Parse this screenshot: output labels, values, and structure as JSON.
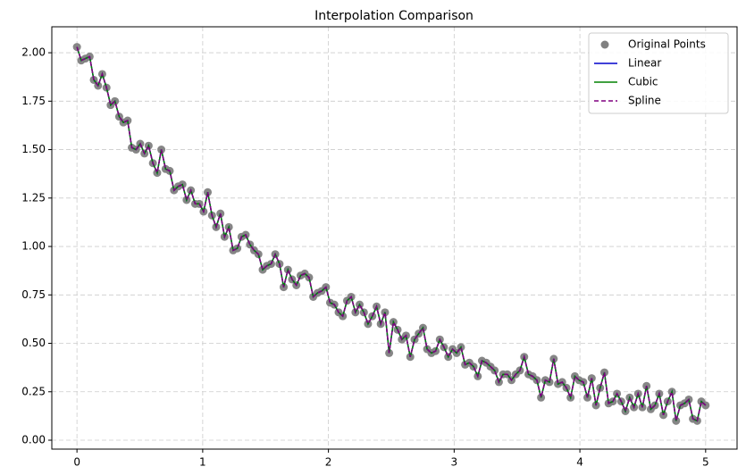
{
  "chart_data": {
    "type": "line",
    "title": "Interpolation Comparison",
    "x": [
      0,
      0.034,
      0.067,
      0.101,
      0.134,
      0.168,
      0.201,
      0.235,
      0.268,
      0.302,
      0.336,
      0.369,
      0.403,
      0.436,
      0.47,
      0.503,
      0.537,
      0.57,
      0.604,
      0.638,
      0.671,
      0.705,
      0.738,
      0.772,
      0.805,
      0.839,
      0.872,
      0.906,
      0.94,
      0.973,
      1.007,
      1.04,
      1.074,
      1.107,
      1.141,
      1.174,
      1.208,
      1.242,
      1.275,
      1.309,
      1.342,
      1.376,
      1.409,
      1.443,
      1.477,
      1.51,
      1.544,
      1.577,
      1.611,
      1.644,
      1.678,
      1.711,
      1.745,
      1.779,
      1.812,
      1.846,
      1.879,
      1.913,
      1.946,
      1.98,
      2.013,
      2.047,
      2.081,
      2.114,
      2.148,
      2.181,
      2.215,
      2.248,
      2.282,
      2.315,
      2.349,
      2.383,
      2.416,
      2.45,
      2.483,
      2.517,
      2.55,
      2.584,
      2.617,
      2.651,
      2.685,
      2.718,
      2.752,
      2.785,
      2.819,
      2.852,
      2.886,
      2.919,
      2.953,
      2.987,
      3.02,
      3.054,
      3.087,
      3.121,
      3.154,
      3.188,
      3.221,
      3.255,
      3.289,
      3.322,
      3.356,
      3.389,
      3.423,
      3.456,
      3.49,
      3.523,
      3.557,
      3.591,
      3.624,
      3.658,
      3.691,
      3.725,
      3.758,
      3.792,
      3.826,
      3.859,
      3.893,
      3.926,
      3.96,
      3.993,
      4.027,
      4.06,
      4.094,
      4.128,
      4.161,
      4.195,
      4.228,
      4.262,
      4.295,
      4.329,
      4.362,
      4.396,
      4.43,
      4.463,
      4.497,
      4.53,
      4.564,
      4.597,
      4.631,
      4.664,
      4.698,
      4.732,
      4.765,
      4.799,
      4.832,
      4.866,
      4.899,
      4.933,
      4.966,
      5
    ],
    "series": [
      {
        "name": "Original Points",
        "kind": "scatter",
        "color": "#808080",
        "values": [
          2.03,
          1.96,
          1.97,
          1.98,
          1.86,
          1.83,
          1.89,
          1.82,
          1.73,
          1.75,
          1.67,
          1.64,
          1.65,
          1.51,
          1.5,
          1.53,
          1.48,
          1.52,
          1.43,
          1.38,
          1.5,
          1.4,
          1.39,
          1.29,
          1.31,
          1.32,
          1.24,
          1.29,
          1.22,
          1.22,
          1.18,
          1.28,
          1.16,
          1.1,
          1.17,
          1.05,
          1.1,
          0.98,
          0.99,
          1.05,
          1.06,
          1.01,
          0.98,
          0.96,
          0.88,
          0.9,
          0.91,
          0.96,
          0.91,
          0.79,
          0.88,
          0.83,
          0.8,
          0.85,
          0.86,
          0.84,
          0.74,
          0.76,
          0.77,
          0.79,
          0.71,
          0.7,
          0.66,
          0.64,
          0.72,
          0.74,
          0.66,
          0.7,
          0.66,
          0.6,
          0.64,
          0.69,
          0.6,
          0.66,
          0.45,
          0.61,
          0.57,
          0.52,
          0.54,
          0.43,
          0.52,
          0.55,
          0.58,
          0.47,
          0.45,
          0.46,
          0.52,
          0.48,
          0.43,
          0.47,
          0.45,
          0.48,
          0.39,
          0.4,
          0.38,
          0.33,
          0.41,
          0.4,
          0.38,
          0.36,
          0.3,
          0.34,
          0.34,
          0.31,
          0.34,
          0.36,
          0.43,
          0.34,
          0.33,
          0.31,
          0.22,
          0.31,
          0.3,
          0.42,
          0.29,
          0.3,
          0.27,
          0.22,
          0.33,
          0.31,
          0.3,
          0.22,
          0.32,
          0.18,
          0.27,
          0.35,
          0.19,
          0.2,
          0.24,
          0.2,
          0.15,
          0.22,
          0.17,
          0.24,
          0.17,
          0.28,
          0.16,
          0.18,
          0.24,
          0.13,
          0.2,
          0.25,
          0.1,
          0.18,
          0.19,
          0.21,
          0.11,
          0.1,
          0.2,
          0.18
        ]
      },
      {
        "name": "Linear",
        "kind": "line",
        "color": "#0000cc",
        "dashed": false,
        "values": [
          2.03,
          1.96,
          1.97,
          1.98,
          1.86,
          1.83,
          1.89,
          1.82,
          1.73,
          1.75,
          1.67,
          1.64,
          1.65,
          1.51,
          1.5,
          1.53,
          1.48,
          1.52,
          1.43,
          1.38,
          1.5,
          1.4,
          1.39,
          1.29,
          1.31,
          1.32,
          1.24,
          1.29,
          1.22,
          1.22,
          1.18,
          1.28,
          1.16,
          1.1,
          1.17,
          1.05,
          1.1,
          0.98,
          0.99,
          1.05,
          1.06,
          1.01,
          0.98,
          0.96,
          0.88,
          0.9,
          0.91,
          0.96,
          0.91,
          0.79,
          0.88,
          0.83,
          0.8,
          0.85,
          0.86,
          0.84,
          0.74,
          0.76,
          0.77,
          0.79,
          0.71,
          0.7,
          0.66,
          0.64,
          0.72,
          0.74,
          0.66,
          0.7,
          0.66,
          0.6,
          0.64,
          0.69,
          0.6,
          0.66,
          0.45,
          0.61,
          0.57,
          0.52,
          0.54,
          0.43,
          0.52,
          0.55,
          0.58,
          0.47,
          0.45,
          0.46,
          0.52,
          0.48,
          0.43,
          0.47,
          0.45,
          0.48,
          0.39,
          0.4,
          0.38,
          0.33,
          0.41,
          0.4,
          0.38,
          0.36,
          0.3,
          0.34,
          0.34,
          0.31,
          0.34,
          0.36,
          0.43,
          0.34,
          0.33,
          0.31,
          0.22,
          0.31,
          0.3,
          0.42,
          0.29,
          0.3,
          0.27,
          0.22,
          0.33,
          0.31,
          0.3,
          0.22,
          0.32,
          0.18,
          0.27,
          0.35,
          0.19,
          0.2,
          0.24,
          0.2,
          0.15,
          0.22,
          0.17,
          0.24,
          0.17,
          0.28,
          0.16,
          0.18,
          0.24,
          0.13,
          0.2,
          0.25,
          0.1,
          0.18,
          0.19,
          0.21,
          0.11,
          0.1,
          0.2,
          0.18
        ]
      },
      {
        "name": "Cubic",
        "kind": "line",
        "color": "#008000",
        "dashed": false,
        "values": [
          2.03,
          1.96,
          1.97,
          1.98,
          1.86,
          1.83,
          1.89,
          1.82,
          1.73,
          1.75,
          1.67,
          1.64,
          1.65,
          1.51,
          1.5,
          1.53,
          1.48,
          1.52,
          1.43,
          1.38,
          1.5,
          1.4,
          1.39,
          1.29,
          1.31,
          1.32,
          1.24,
          1.29,
          1.22,
          1.22,
          1.18,
          1.28,
          1.16,
          1.1,
          1.17,
          1.05,
          1.1,
          0.98,
          0.99,
          1.05,
          1.06,
          1.01,
          0.98,
          0.96,
          0.88,
          0.9,
          0.91,
          0.96,
          0.91,
          0.79,
          0.88,
          0.83,
          0.8,
          0.85,
          0.86,
          0.84,
          0.74,
          0.76,
          0.77,
          0.79,
          0.71,
          0.7,
          0.66,
          0.64,
          0.72,
          0.74,
          0.66,
          0.7,
          0.66,
          0.6,
          0.64,
          0.69,
          0.6,
          0.66,
          0.45,
          0.61,
          0.57,
          0.52,
          0.54,
          0.43,
          0.52,
          0.55,
          0.58,
          0.47,
          0.45,
          0.46,
          0.52,
          0.48,
          0.43,
          0.47,
          0.45,
          0.48,
          0.39,
          0.4,
          0.38,
          0.33,
          0.41,
          0.4,
          0.38,
          0.36,
          0.3,
          0.34,
          0.34,
          0.31,
          0.34,
          0.36,
          0.43,
          0.34,
          0.33,
          0.31,
          0.22,
          0.31,
          0.3,
          0.42,
          0.29,
          0.3,
          0.27,
          0.22,
          0.33,
          0.31,
          0.3,
          0.22,
          0.32,
          0.18,
          0.27,
          0.35,
          0.19,
          0.2,
          0.24,
          0.2,
          0.15,
          0.22,
          0.17,
          0.24,
          0.17,
          0.28,
          0.16,
          0.18,
          0.24,
          0.13,
          0.2,
          0.25,
          0.1,
          0.18,
          0.19,
          0.21,
          0.11,
          0.1,
          0.2,
          0.18
        ]
      },
      {
        "name": "Spline",
        "kind": "line",
        "color": "#800080",
        "dashed": true,
        "values": [
          2.03,
          1.96,
          1.97,
          1.98,
          1.86,
          1.83,
          1.89,
          1.82,
          1.73,
          1.75,
          1.67,
          1.64,
          1.65,
          1.51,
          1.5,
          1.53,
          1.48,
          1.52,
          1.43,
          1.38,
          1.5,
          1.4,
          1.39,
          1.29,
          1.31,
          1.32,
          1.24,
          1.29,
          1.22,
          1.22,
          1.18,
          1.28,
          1.16,
          1.1,
          1.17,
          1.05,
          1.1,
          0.98,
          0.99,
          1.05,
          1.06,
          1.01,
          0.98,
          0.96,
          0.88,
          0.9,
          0.91,
          0.96,
          0.91,
          0.79,
          0.88,
          0.83,
          0.8,
          0.85,
          0.86,
          0.84,
          0.74,
          0.76,
          0.77,
          0.79,
          0.71,
          0.7,
          0.66,
          0.64,
          0.72,
          0.74,
          0.66,
          0.7,
          0.66,
          0.6,
          0.64,
          0.69,
          0.6,
          0.66,
          0.45,
          0.61,
          0.57,
          0.52,
          0.54,
          0.43,
          0.52,
          0.55,
          0.58,
          0.47,
          0.45,
          0.46,
          0.52,
          0.48,
          0.43,
          0.47,
          0.45,
          0.48,
          0.39,
          0.4,
          0.38,
          0.33,
          0.41,
          0.4,
          0.38,
          0.36,
          0.3,
          0.34,
          0.34,
          0.31,
          0.34,
          0.36,
          0.43,
          0.34,
          0.33,
          0.31,
          0.22,
          0.31,
          0.3,
          0.42,
          0.29,
          0.3,
          0.27,
          0.22,
          0.33,
          0.31,
          0.3,
          0.22,
          0.32,
          0.18,
          0.27,
          0.35,
          0.19,
          0.2,
          0.24,
          0.2,
          0.15,
          0.22,
          0.17,
          0.24,
          0.17,
          0.28,
          0.16,
          0.18,
          0.24,
          0.13,
          0.2,
          0.25,
          0.1,
          0.18,
          0.19,
          0.21,
          0.11,
          0.1,
          0.2,
          0.18
        ]
      }
    ],
    "xlim": [
      -0.2,
      5.25
    ],
    "ylim": [
      -0.046,
      2.134
    ],
    "xticks": [
      0,
      1,
      2,
      3,
      4,
      5
    ],
    "yticks": [
      {
        "value": 0,
        "label": "0.00"
      },
      {
        "value": 0.25,
        "label": "0.25"
      },
      {
        "value": 0.5,
        "label": "0.50"
      },
      {
        "value": 0.75,
        "label": "0.75"
      },
      {
        "value": 1,
        "label": "1.00"
      },
      {
        "value": 1.25,
        "label": "1.25"
      },
      {
        "value": 1.5,
        "label": "1.50"
      },
      {
        "value": 1.75,
        "label": "1.75"
      },
      {
        "value": 2,
        "label": "2.00"
      }
    ],
    "grid": true,
    "legend": "upper-right"
  }
}
